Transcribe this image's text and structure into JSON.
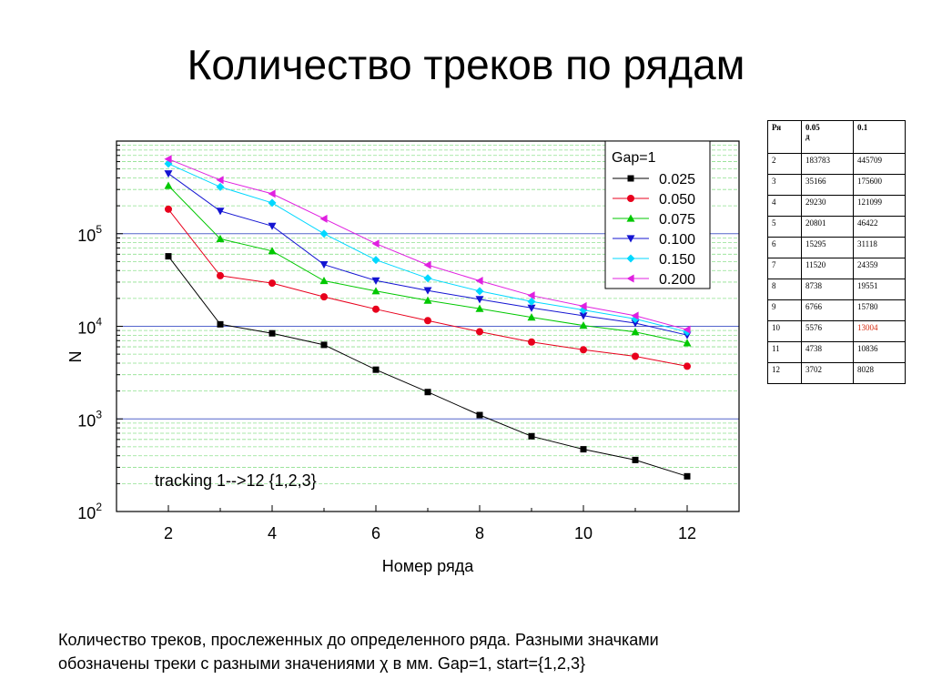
{
  "slide": {
    "title": "Количество треков по рядам",
    "caption_lines": [
      "Количество треков, прослеженных до определенного ряда. Разными значками",
      "обозначены треки с разными значениями χ в мм. Gap=1, start={1,2,3}"
    ]
  },
  "chart_data": {
    "type": "line",
    "title": "",
    "xlabel": "Номер ряда",
    "ylabel": "N",
    "xlim": [
      1,
      13
    ],
    "ylim": [
      100,
      1000000
    ],
    "yscale": "log",
    "x_ticks": [
      "2",
      "4",
      "6",
      "8",
      "10",
      "12"
    ],
    "y_ticks": [
      {
        "base": "10",
        "exp": "2"
      },
      {
        "base": "10",
        "exp": "3"
      },
      {
        "base": "10",
        "exp": "4"
      },
      {
        "base": "10",
        "exp": "5"
      }
    ],
    "grid": true,
    "legend_title": "Gap=1",
    "legend_position": "top-right",
    "annotation": "tracking 1-->12 {1,2,3}",
    "x": [
      2,
      3,
      4,
      5,
      6,
      7,
      8,
      9,
      10,
      11,
      12
    ],
    "series": [
      {
        "name": "0.025",
        "color": "#000000",
        "marker": "square",
        "values": [
          57000,
          10500,
          8400,
          6300,
          3400,
          1950,
          1100,
          650,
          470,
          360,
          240
        ]
      },
      {
        "name": "0.050",
        "color": "#e8001c",
        "marker": "circle",
        "values": [
          183783,
          35166,
          29230,
          20801,
          15295,
          11520,
          8738,
          6766,
          5576,
          4738,
          3702
        ]
      },
      {
        "name": "0.075",
        "color": "#00c800",
        "marker": "triangle-up",
        "values": [
          330000,
          88000,
          65000,
          31000,
          24000,
          19000,
          15500,
          12500,
          10200,
          8700,
          6600
        ]
      },
      {
        "name": "0.100",
        "color": "#1414d2",
        "marker": "triangle-down",
        "values": [
          445709,
          175600,
          121099,
          46422,
          31118,
          24359,
          19551,
          15780,
          13004,
          10836,
          8028
        ]
      },
      {
        "name": "0.150",
        "color": "#00d8ff",
        "marker": "diamond",
        "values": [
          570000,
          320000,
          215000,
          100000,
          52000,
          33000,
          24000,
          18500,
          15000,
          12000,
          8700
        ]
      },
      {
        "name": "0.200",
        "color": "#e020e0",
        "marker": "triangle-left",
        "values": [
          640000,
          380000,
          270000,
          145000,
          78000,
          46000,
          31000,
          21500,
          16500,
          13000,
          9200
        ]
      }
    ]
  },
  "table": {
    "headers": [
      "Ря",
      "0.05\nд",
      "0.1"
    ],
    "rows": [
      [
        "2",
        "183783",
        "445709"
      ],
      [
        "3",
        "35166",
        "175600"
      ],
      [
        "4",
        "29230",
        "121099"
      ],
      [
        "5",
        "20801",
        "46422"
      ],
      [
        "6",
        "15295",
        "31118"
      ],
      [
        "7",
        "11520",
        "24359"
      ],
      [
        "8",
        "8738",
        "19551"
      ],
      [
        "9",
        "6766",
        "15780"
      ],
      [
        "10",
        "5576",
        "13004"
      ],
      [
        "11",
        "4738",
        "10836"
      ],
      [
        "12",
        "3702",
        "8028"
      ]
    ],
    "highlight_color": "#d62a0f",
    "highlight_cell": {
      "row": 8,
      "col": 2
    }
  }
}
